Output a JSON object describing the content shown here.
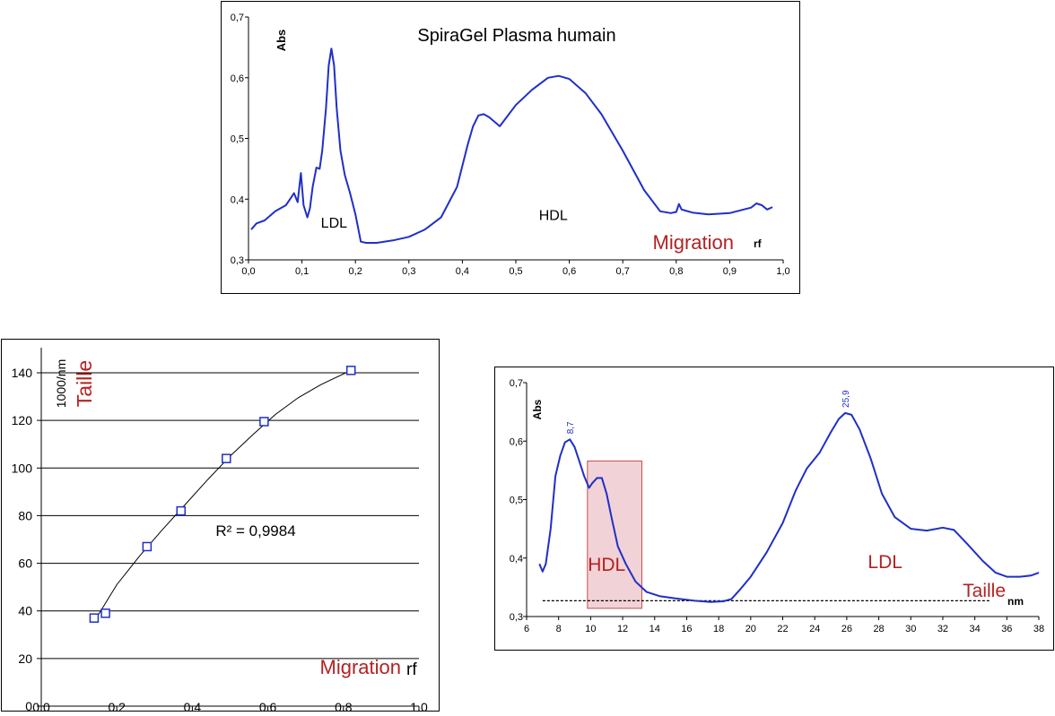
{
  "colors": {
    "curve": "#1f2fc8",
    "accent_red": "#b22222",
    "frame": "#000000",
    "grid": "#000000",
    "highlight_fill": "#e8b4ba",
    "highlight_stroke": "#c0504d"
  },
  "chart_data": [
    {
      "id": "migration",
      "type": "line",
      "title": "SpiraGel Plasma humain",
      "ylabel": "Abs",
      "xunit": "rf",
      "xaxis_caption": "Migration",
      "xlim": [
        0,
        1.0
      ],
      "ylim": [
        0.3,
        0.7
      ],
      "xticks": [
        "0,0",
        "0,1",
        "0,2",
        "0,3",
        "0,4",
        "0,5",
        "0,6",
        "0,7",
        "0,8",
        "0,9",
        "1,0"
      ],
      "yticks": [
        "0,3",
        "0,4",
        "0,5",
        "0,6",
        "0,7"
      ],
      "grid": false,
      "annotations": [
        {
          "text": "LDL",
          "x": 0.16,
          "y": 0.353
        },
        {
          "text": "HDL",
          "x": 0.57,
          "y": 0.366
        }
      ],
      "series": [
        {
          "x": [
            0.005,
            0.015,
            0.03,
            0.05,
            0.07,
            0.08,
            0.085,
            0.092,
            0.098,
            0.103,
            0.11,
            0.115,
            0.12,
            0.127,
            0.133,
            0.138,
            0.145,
            0.15,
            0.155,
            0.16,
            0.165,
            0.172,
            0.18,
            0.19,
            0.2,
            0.21,
            0.22,
            0.24,
            0.27,
            0.3,
            0.33,
            0.36,
            0.39,
            0.41,
            0.42,
            0.43,
            0.44,
            0.45,
            0.47,
            0.5,
            0.53,
            0.56,
            0.58,
            0.6,
            0.63,
            0.66,
            0.7,
            0.74,
            0.77,
            0.79,
            0.8,
            0.805,
            0.81,
            0.83,
            0.86,
            0.9,
            0.94,
            0.95,
            0.96,
            0.97,
            0.98
          ],
          "y": [
            0.35,
            0.36,
            0.365,
            0.38,
            0.39,
            0.403,
            0.41,
            0.395,
            0.443,
            0.39,
            0.37,
            0.385,
            0.42,
            0.452,
            0.45,
            0.48,
            0.55,
            0.62,
            0.648,
            0.62,
            0.55,
            0.48,
            0.44,
            0.41,
            0.375,
            0.33,
            0.328,
            0.328,
            0.332,
            0.338,
            0.35,
            0.37,
            0.42,
            0.49,
            0.52,
            0.538,
            0.54,
            0.535,
            0.52,
            0.555,
            0.58,
            0.6,
            0.603,
            0.598,
            0.575,
            0.54,
            0.48,
            0.415,
            0.38,
            0.377,
            0.379,
            0.392,
            0.383,
            0.378,
            0.375,
            0.377,
            0.386,
            0.393,
            0.39,
            0.383,
            0.387
          ]
        }
      ]
    },
    {
      "id": "calibration",
      "type": "scatter",
      "ylabel": "1000/nm",
      "ylabel_caption": "Taille",
      "xunit": "rf",
      "xaxis_caption": "Migration",
      "xlim": [
        0,
        1.0
      ],
      "ylim": [
        0,
        150
      ],
      "xticks": [
        "0,0",
        "0,2",
        "0,4",
        "0,6",
        "0,8",
        "1,0"
      ],
      "yticks": [
        "0",
        "20",
        "40",
        "60",
        "80",
        "100",
        "120",
        "140"
      ],
      "grid": true,
      "r2_label": "R² = 0,9984",
      "points": [
        {
          "x": 0.14,
          "y": 37
        },
        {
          "x": 0.17,
          "y": 39
        },
        {
          "x": 0.28,
          "y": 67
        },
        {
          "x": 0.37,
          "y": 82
        },
        {
          "x": 0.49,
          "y": 104
        },
        {
          "x": 0.59,
          "y": 119.5
        },
        {
          "x": 0.82,
          "y": 141
        }
      ],
      "trendline": {
        "x": [
          0.14,
          0.2,
          0.26,
          0.32,
          0.38,
          0.44,
          0.5,
          0.56,
          0.62,
          0.68,
          0.74,
          0.82
        ],
        "y": [
          35.5,
          51,
          63,
          74,
          84.5,
          95,
          105,
          114,
          122.5,
          129.5,
          135,
          141
        ]
      }
    },
    {
      "id": "size",
      "type": "line",
      "ylabel": "Abs",
      "xunit": "nm",
      "xaxis_caption": "Taille",
      "xlim": [
        6,
        38
      ],
      "ylim": [
        0.3,
        0.7
      ],
      "xticks": [
        "6",
        "8",
        "10",
        "12",
        "14",
        "16",
        "18",
        "20",
        "22",
        "24",
        "26",
        "28",
        "30",
        "32",
        "34",
        "36",
        "38"
      ],
      "yticks": [
        "0,3",
        "0,4",
        "0,5",
        "0,6",
        "0,7"
      ],
      "grid": false,
      "peak_labels": [
        {
          "text": "8,7",
          "x": 8.7,
          "y": 0.603
        },
        {
          "text": "25,9",
          "x": 25.9,
          "y": 0.648
        }
      ],
      "annotations": [
        {
          "text": "HDL",
          "x": 11.0,
          "y": 0.378
        },
        {
          "text": "LDL",
          "x": 28.4,
          "y": 0.383
        }
      ],
      "baseline_y": 0.327,
      "baseline_x": [
        7,
        35
      ],
      "highlight_x": [
        9.8,
        13.2
      ],
      "highlight_y": [
        0.314,
        0.566
      ],
      "series": [
        {
          "x": [
            6.8,
            7.0,
            7.2,
            7.5,
            7.8,
            8.1,
            8.4,
            8.7,
            9.0,
            9.3,
            9.6,
            9.9,
            10.1,
            10.4,
            10.7,
            11.0,
            11.3,
            11.7,
            12.2,
            12.8,
            13.5,
            14.3,
            15.3,
            16.5,
            17.5,
            18.3,
            18.8,
            19.3,
            20.0,
            21.0,
            22.0,
            22.8,
            23.5,
            24.3,
            25.0,
            25.5,
            25.9,
            26.3,
            26.8,
            27.5,
            28.2,
            29.0,
            30.0,
            31.0,
            32.0,
            32.7,
            33.5,
            34.5,
            35.3,
            36.0,
            36.8,
            37.5,
            38.0
          ],
          "y": [
            0.39,
            0.377,
            0.39,
            0.45,
            0.54,
            0.575,
            0.598,
            0.603,
            0.59,
            0.565,
            0.54,
            0.52,
            0.528,
            0.537,
            0.537,
            0.51,
            0.47,
            0.42,
            0.39,
            0.36,
            0.342,
            0.335,
            0.331,
            0.327,
            0.325,
            0.326,
            0.33,
            0.345,
            0.368,
            0.41,
            0.46,
            0.515,
            0.553,
            0.58,
            0.615,
            0.638,
            0.648,
            0.645,
            0.62,
            0.57,
            0.51,
            0.47,
            0.45,
            0.447,
            0.452,
            0.448,
            0.425,
            0.395,
            0.375,
            0.368,
            0.368,
            0.37,
            0.375
          ]
        }
      ]
    }
  ]
}
